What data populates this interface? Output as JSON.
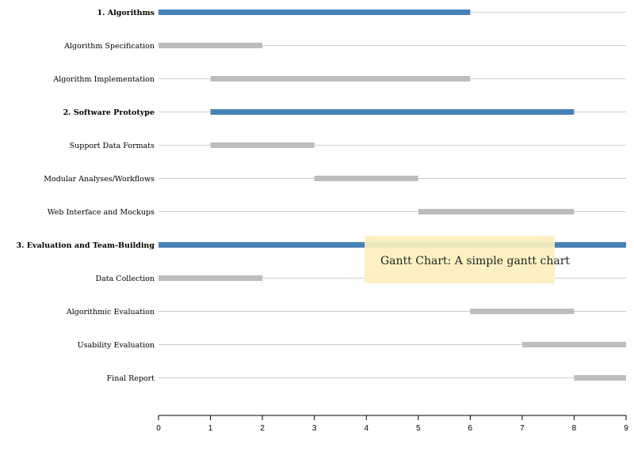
{
  "chart_data": {
    "type": "gantt",
    "xlim": [
      0,
      9
    ],
    "x_ticks": [
      "0",
      "1",
      "2",
      "3",
      "4",
      "5",
      "6",
      "7",
      "8",
      "9"
    ],
    "colors": {
      "group": "#4682b4",
      "task": "#bdbdbd"
    },
    "tasks": [
      {
        "label": "1. Algorithms",
        "start": 0,
        "end": 6,
        "group": true
      },
      {
        "label": "Algorithm Specification",
        "start": 0,
        "end": 2,
        "group": false
      },
      {
        "label": "Algorithm Implementation",
        "start": 1,
        "end": 6,
        "group": false
      },
      {
        "label": "2. Software Prototype",
        "start": 1,
        "end": 8,
        "group": true
      },
      {
        "label": "Support Data Formats",
        "start": 1,
        "end": 3,
        "group": false
      },
      {
        "label": "Modular Analyses/Workflows",
        "start": 3,
        "end": 5,
        "group": false
      },
      {
        "label": "Web Interface and Mockups",
        "start": 5,
        "end": 8,
        "group": false
      },
      {
        "label": "3. Evaluation and Team-Building",
        "start": 0,
        "end": 9,
        "group": true
      },
      {
        "label": "Data Collection",
        "start": 0,
        "end": 2,
        "group": false
      },
      {
        "label": "Algorithmic Evaluation",
        "start": 6,
        "end": 8,
        "group": false
      },
      {
        "label": "Usability Evaluation",
        "start": 7,
        "end": 9,
        "group": false
      },
      {
        "label": "Final Report",
        "start": 8,
        "end": 9,
        "group": false
      }
    ]
  },
  "tooltip": {
    "text": "Gantt Chart: A simple gantt chart",
    "background": "#fdf0bd"
  }
}
